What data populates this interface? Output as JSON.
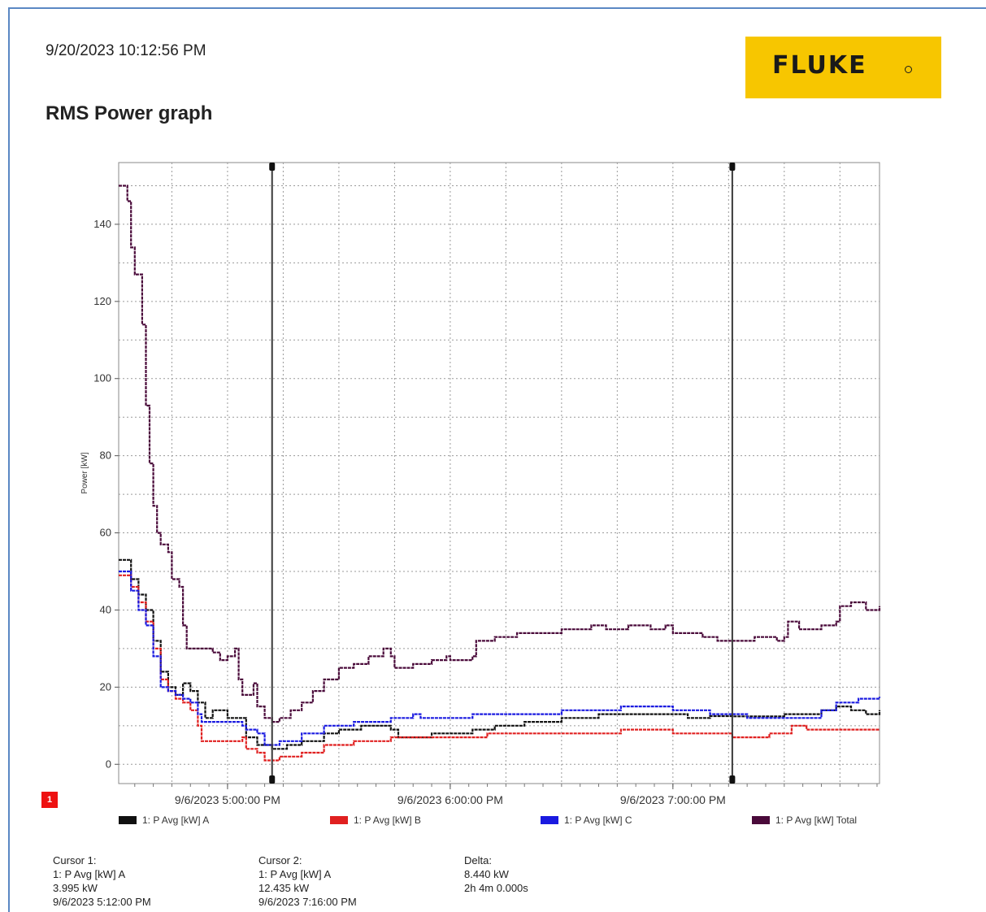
{
  "header": {
    "timestamp": "9/20/2023 10:12:56 PM",
    "logo_text": "FLUKE",
    "title": "RMS Power graph"
  },
  "badge": "1",
  "chart_data": {
    "type": "line",
    "xlabel": "",
    "ylabel": "Power [kW]",
    "ylim": [
      -5,
      156
    ],
    "xlim": [
      "9/6/2023 4:30:40 PM",
      "9/6/2023 7:55:40 PM"
    ],
    "y_ticks": [
      0,
      20,
      40,
      60,
      80,
      100,
      120,
      140
    ],
    "x_ticks": [
      "9/6/2023 5:00:00 PM",
      "9/6/2023 6:00:00 PM",
      "9/6/2023 7:00:00 PM"
    ],
    "grid": true,
    "legend_position": "bottom",
    "colors": {
      "A": "#111111",
      "B": "#e02020",
      "C": "#1a1ae0",
      "Total": "#4a0a3a"
    },
    "series": [
      {
        "name": "1: P Avg [kW] A",
        "points": [
          [
            "9/6/2023 4:30:40 PM",
            53
          ],
          [
            "9/6/2023 4:32:00 PM",
            53
          ],
          [
            "9/6/2023 4:34:00 PM",
            48
          ],
          [
            "9/6/2023 4:36:00 PM",
            44
          ],
          [
            "9/6/2023 4:38:00 PM",
            40
          ],
          [
            "9/6/2023 4:40:00 PM",
            32
          ],
          [
            "9/6/2023 4:42:00 PM",
            24
          ],
          [
            "9/6/2023 4:44:00 PM",
            20
          ],
          [
            "9/6/2023 4:46:00 PM",
            18
          ],
          [
            "9/6/2023 4:48:00 PM",
            21
          ],
          [
            "9/6/2023 4:50:00 PM",
            19
          ],
          [
            "9/6/2023 4:52:00 PM",
            16
          ],
          [
            "9/6/2023 4:54:00 PM",
            12
          ],
          [
            "9/6/2023 4:56:00 PM",
            14
          ],
          [
            "9/6/2023 5:00:00 PM",
            12
          ],
          [
            "9/6/2023 5:04:00 PM",
            12
          ],
          [
            "9/6/2023 5:05:00 PM",
            7
          ],
          [
            "9/6/2023 5:08:00 PM",
            5
          ],
          [
            "9/6/2023 5:12:00 PM",
            3.995
          ],
          [
            "9/6/2023 5:16:00 PM",
            5
          ],
          [
            "9/6/2023 5:20:00 PM",
            6
          ],
          [
            "9/6/2023 5:26:00 PM",
            8
          ],
          [
            "9/6/2023 5:30:00 PM",
            9
          ],
          [
            "9/6/2023 5:36:00 PM",
            10
          ],
          [
            "9/6/2023 5:44:00 PM",
            9
          ],
          [
            "9/6/2023 5:46:00 PM",
            7
          ],
          [
            "9/6/2023 5:55:00 PM",
            8
          ],
          [
            "9/6/2023 6:00:00 PM",
            8
          ],
          [
            "9/6/2023 6:06:00 PM",
            9
          ],
          [
            "9/6/2023 6:12:00 PM",
            10
          ],
          [
            "9/6/2023 6:20:00 PM",
            11
          ],
          [
            "9/6/2023 6:30:00 PM",
            12
          ],
          [
            "9/6/2023 6:40:00 PM",
            13
          ],
          [
            "9/6/2023 6:50:00 PM",
            13
          ],
          [
            "9/6/2023 7:00:00 PM",
            13
          ],
          [
            "9/6/2023 7:04:00 PM",
            12
          ],
          [
            "9/6/2023 7:10:00 PM",
            12.5
          ],
          [
            "9/6/2023 7:16:00 PM",
            12.435
          ],
          [
            "9/6/2023 7:30:00 PM",
            13
          ],
          [
            "9/6/2023 7:40:00 PM",
            14
          ],
          [
            "9/6/2023 7:44:00 PM",
            15
          ],
          [
            "9/6/2023 7:48:00 PM",
            14
          ],
          [
            "9/6/2023 7:52:00 PM",
            13
          ],
          [
            "9/6/2023 7:55:40 PM",
            14
          ]
        ]
      },
      {
        "name": "1: P Avg [kW] B",
        "points": [
          [
            "9/6/2023 4:30:40 PM",
            49
          ],
          [
            "9/6/2023 4:32:00 PM",
            49
          ],
          [
            "9/6/2023 4:34:00 PM",
            46
          ],
          [
            "9/6/2023 4:36:00 PM",
            42
          ],
          [
            "9/6/2023 4:38:00 PM",
            37
          ],
          [
            "9/6/2023 4:40:00 PM",
            30
          ],
          [
            "9/6/2023 4:42:00 PM",
            22
          ],
          [
            "9/6/2023 4:44:00 PM",
            19
          ],
          [
            "9/6/2023 4:46:00 PM",
            17
          ],
          [
            "9/6/2023 4:48:00 PM",
            16
          ],
          [
            "9/6/2023 4:50:00 PM",
            14
          ],
          [
            "9/6/2023 4:52:00 PM",
            10
          ],
          [
            "9/6/2023 4:53:00 PM",
            6
          ],
          [
            "9/6/2023 4:56:00 PM",
            6
          ],
          [
            "9/6/2023 5:00:00 PM",
            6
          ],
          [
            "9/6/2023 5:04:00 PM",
            7
          ],
          [
            "9/6/2023 5:05:00 PM",
            4
          ],
          [
            "9/6/2023 5:08:00 PM",
            3
          ],
          [
            "9/6/2023 5:10:00 PM",
            1
          ],
          [
            "9/6/2023 5:14:00 PM",
            2
          ],
          [
            "9/6/2023 5:20:00 PM",
            3
          ],
          [
            "9/6/2023 5:26:00 PM",
            5
          ],
          [
            "9/6/2023 5:34:00 PM",
            6
          ],
          [
            "9/6/2023 5:44:00 PM",
            7
          ],
          [
            "9/6/2023 5:55:00 PM",
            7
          ],
          [
            "9/6/2023 6:04:00 PM",
            7
          ],
          [
            "9/6/2023 6:10:00 PM",
            8
          ],
          [
            "9/6/2023 6:20:00 PM",
            8
          ],
          [
            "9/6/2023 6:30:00 PM",
            8
          ],
          [
            "9/6/2023 6:40:00 PM",
            8
          ],
          [
            "9/6/2023 6:46:00 PM",
            9
          ],
          [
            "9/6/2023 6:50:00 PM",
            9
          ],
          [
            "9/6/2023 7:00:00 PM",
            8
          ],
          [
            "9/6/2023 7:10:00 PM",
            8
          ],
          [
            "9/6/2023 7:16:00 PM",
            7
          ],
          [
            "9/6/2023 7:26:00 PM",
            8
          ],
          [
            "9/6/2023 7:30:00 PM",
            8
          ],
          [
            "9/6/2023 7:32:00 PM",
            10
          ],
          [
            "9/6/2023 7:36:00 PM",
            9
          ],
          [
            "9/6/2023 7:44:00 PM",
            9
          ],
          [
            "9/6/2023 7:55:40 PM",
            9
          ]
        ]
      },
      {
        "name": "1: P Avg [kW] C",
        "points": [
          [
            "9/6/2023 4:30:40 PM",
            50
          ],
          [
            "9/6/2023 4:32:00 PM",
            50
          ],
          [
            "9/6/2023 4:34:00 PM",
            45
          ],
          [
            "9/6/2023 4:36:00 PM",
            40
          ],
          [
            "9/6/2023 4:38:00 PM",
            36
          ],
          [
            "9/6/2023 4:40:00 PM",
            28
          ],
          [
            "9/6/2023 4:42:00 PM",
            20
          ],
          [
            "9/6/2023 4:44:00 PM",
            19
          ],
          [
            "9/6/2023 4:46:00 PM",
            18
          ],
          [
            "9/6/2023 4:48:00 PM",
            17
          ],
          [
            "9/6/2023 4:50:00 PM",
            16
          ],
          [
            "9/6/2023 4:52:00 PM",
            13
          ],
          [
            "9/6/2023 4:53:00 PM",
            11
          ],
          [
            "9/6/2023 4:56:00 PM",
            11
          ],
          [
            "9/6/2023 5:00:00 PM",
            11
          ],
          [
            "9/6/2023 5:04:00 PM",
            10
          ],
          [
            "9/6/2023 5:05:00 PM",
            9
          ],
          [
            "9/6/2023 5:08:00 PM",
            8
          ],
          [
            "9/6/2023 5:10:00 PM",
            5
          ],
          [
            "9/6/2023 5:14:00 PM",
            6
          ],
          [
            "9/6/2023 5:20:00 PM",
            8
          ],
          [
            "9/6/2023 5:26:00 PM",
            10
          ],
          [
            "9/6/2023 5:34:00 PM",
            11
          ],
          [
            "9/6/2023 5:44:00 PM",
            12
          ],
          [
            "9/6/2023 5:50:00 PM",
            13
          ],
          [
            "9/6/2023 5:52:00 PM",
            12
          ],
          [
            "9/6/2023 6:00:00 PM",
            12
          ],
          [
            "9/6/2023 6:06:00 PM",
            13
          ],
          [
            "9/6/2023 6:16:00 PM",
            13
          ],
          [
            "9/6/2023 6:30:00 PM",
            14
          ],
          [
            "9/6/2023 6:40:00 PM",
            14
          ],
          [
            "9/6/2023 6:46:00 PM",
            15
          ],
          [
            "9/6/2023 6:56:00 PM",
            15
          ],
          [
            "9/6/2023 7:00:00 PM",
            14
          ],
          [
            "9/6/2023 7:06:00 PM",
            14
          ],
          [
            "9/6/2023 7:10:00 PM",
            13
          ],
          [
            "9/6/2023 7:20:00 PM",
            12
          ],
          [
            "9/6/2023 7:30:00 PM",
            12
          ],
          [
            "9/6/2023 7:40:00 PM",
            14
          ],
          [
            "9/6/2023 7:44:00 PM",
            16
          ],
          [
            "9/6/2023 7:50:00 PM",
            17
          ],
          [
            "9/6/2023 7:55:40 PM",
            17.5
          ]
        ]
      },
      {
        "name": "1: P Avg [kW] Total",
        "points": [
          [
            "9/6/2023 4:30:40 PM",
            150
          ],
          [
            "9/6/2023 4:32:00 PM",
            150
          ],
          [
            "9/6/2023 4:33:00 PM",
            146
          ],
          [
            "9/6/2023 4:34:00 PM",
            134
          ],
          [
            "9/6/2023 4:35:00 PM",
            127
          ],
          [
            "9/6/2023 4:37:00 PM",
            114
          ],
          [
            "9/6/2023 4:38:00 PM",
            93
          ],
          [
            "9/6/2023 4:39:00 PM",
            78
          ],
          [
            "9/6/2023 4:40:00 PM",
            67
          ],
          [
            "9/6/2023 4:41:00 PM",
            60
          ],
          [
            "9/6/2023 4:42:00 PM",
            57
          ],
          [
            "9/6/2023 4:44:00 PM",
            55
          ],
          [
            "9/6/2023 4:45:00 PM",
            48
          ],
          [
            "9/6/2023 4:47:00 PM",
            46
          ],
          [
            "9/6/2023 4:48:00 PM",
            36
          ],
          [
            "9/6/2023 4:49:00 PM",
            30
          ],
          [
            "9/6/2023 4:52:00 PM",
            30
          ],
          [
            "9/6/2023 4:56:00 PM",
            29
          ],
          [
            "9/6/2023 4:58:00 PM",
            27
          ],
          [
            "9/6/2023 5:00:00 PM",
            28
          ],
          [
            "9/6/2023 5:02:00 PM",
            30
          ],
          [
            "9/6/2023 5:03:00 PM",
            22
          ],
          [
            "9/6/2023 5:04:00 PM",
            18
          ],
          [
            "9/6/2023 5:06:00 PM",
            18
          ],
          [
            "9/6/2023 5:07:00 PM",
            21
          ],
          [
            "9/6/2023 5:08:00 PM",
            15
          ],
          [
            "9/6/2023 5:10:00 PM",
            12
          ],
          [
            "9/6/2023 5:12:00 PM",
            11
          ],
          [
            "9/6/2023 5:14:00 PM",
            12
          ],
          [
            "9/6/2023 5:17:00 PM",
            14
          ],
          [
            "9/6/2023 5:20:00 PM",
            16
          ],
          [
            "9/6/2023 5:23:00 PM",
            19
          ],
          [
            "9/6/2023 5:26:00 PM",
            22
          ],
          [
            "9/6/2023 5:30:00 PM",
            25
          ],
          [
            "9/6/2023 5:34:00 PM",
            26
          ],
          [
            "9/6/2023 5:38:00 PM",
            28
          ],
          [
            "9/6/2023 5:42:00 PM",
            30
          ],
          [
            "9/6/2023 5:44:00 PM",
            28
          ],
          [
            "9/6/2023 5:45:00 PM",
            25
          ],
          [
            "9/6/2023 5:50:00 PM",
            26
          ],
          [
            "9/6/2023 5:55:00 PM",
            27
          ],
          [
            "9/6/2023 5:59:00 PM",
            28
          ],
          [
            "9/6/2023 6:00:00 PM",
            27
          ],
          [
            "9/6/2023 6:06:00 PM",
            28
          ],
          [
            "9/6/2023 6:07:00 PM",
            32
          ],
          [
            "9/6/2023 6:12:00 PM",
            33
          ],
          [
            "9/6/2023 6:18:00 PM",
            34
          ],
          [
            "9/6/2023 6:26:00 PM",
            34
          ],
          [
            "9/6/2023 6:30:00 PM",
            35
          ],
          [
            "9/6/2023 6:38:00 PM",
            36
          ],
          [
            "9/6/2023 6:42:00 PM",
            35
          ],
          [
            "9/6/2023 6:48:00 PM",
            36
          ],
          [
            "9/6/2023 6:54:00 PM",
            35
          ],
          [
            "9/6/2023 6:58:00 PM",
            36
          ],
          [
            "9/6/2023 7:00:00 PM",
            34
          ],
          [
            "9/6/2023 7:04:00 PM",
            34
          ],
          [
            "9/6/2023 7:08:00 PM",
            33
          ],
          [
            "9/6/2023 7:12:00 PM",
            32
          ],
          [
            "9/6/2023 7:16:00 PM",
            32
          ],
          [
            "9/6/2023 7:22:00 PM",
            33
          ],
          [
            "9/6/2023 7:28:00 PM",
            32
          ],
          [
            "9/6/2023 7:30:00 PM",
            33
          ],
          [
            "9/6/2023 7:31:00 PM",
            37
          ],
          [
            "9/6/2023 7:34:00 PM",
            35
          ],
          [
            "9/6/2023 7:40:00 PM",
            36
          ],
          [
            "9/6/2023 7:44:00 PM",
            37
          ],
          [
            "9/6/2023 7:45:00 PM",
            41
          ],
          [
            "9/6/2023 7:48:00 PM",
            42
          ],
          [
            "9/6/2023 7:52:00 PM",
            40
          ],
          [
            "9/6/2023 7:55:40 PM",
            41
          ]
        ]
      }
    ],
    "cursors": [
      {
        "time": "9/6/2023 5:12:00 PM"
      },
      {
        "time": "9/6/2023 7:16:00 PM"
      }
    ]
  },
  "legend": [
    {
      "label": "1: P Avg [kW] A",
      "color": "#111111"
    },
    {
      "label": "1: P Avg [kW] B",
      "color": "#e02020"
    },
    {
      "label": "1: P Avg [kW] C",
      "color": "#1a1ae0"
    },
    {
      "label": "1: P Avg [kW] Total",
      "color": "#4a0a3a"
    }
  ],
  "cursor_info": {
    "cursor1": {
      "title": "Cursor 1:",
      "channel": "1: P Avg [kW] A",
      "value": "3.995 kW",
      "time": "9/6/2023 5:12:00 PM"
    },
    "cursor2": {
      "title": "Cursor 2:",
      "channel": "1: P Avg [kW] A",
      "value": "12.435 kW",
      "time": "9/6/2023 7:16:00 PM"
    },
    "delta": {
      "title": "Delta:",
      "value": "8.440 kW",
      "duration": "2h 4m 0.000s"
    }
  }
}
